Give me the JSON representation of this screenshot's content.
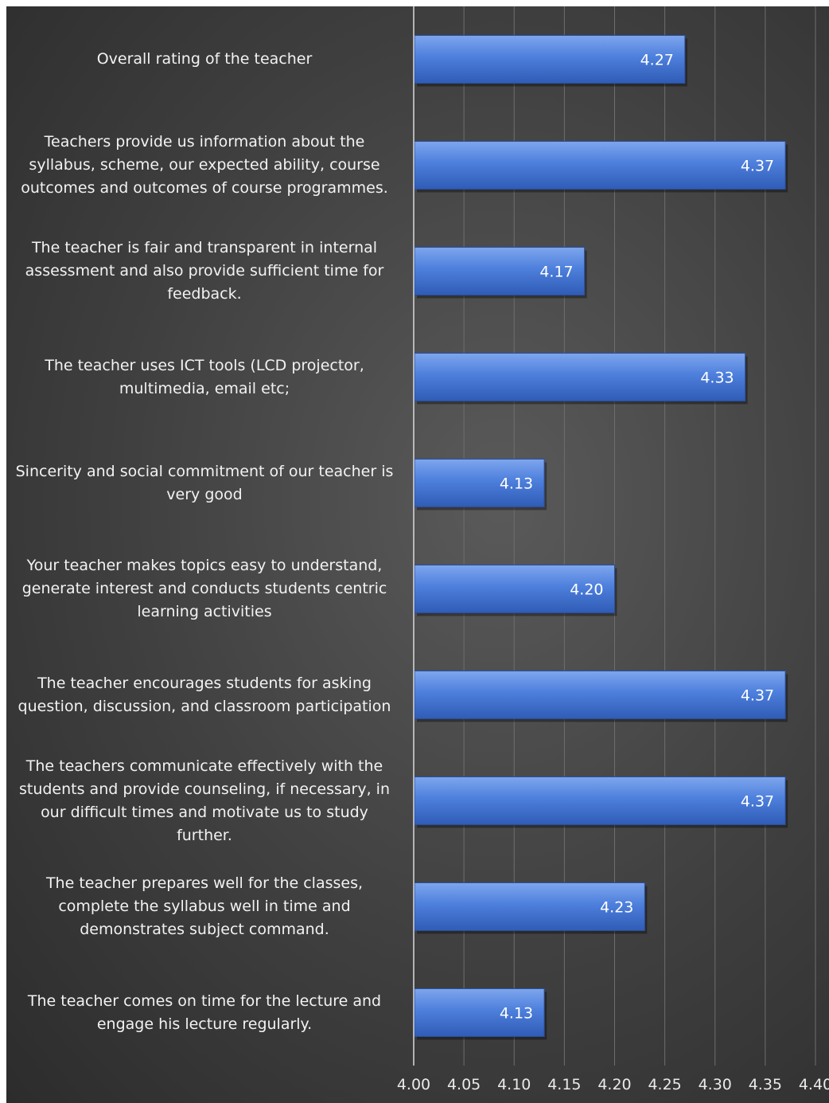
{
  "chart_data": {
    "type": "bar",
    "orientation": "horizontal",
    "categories": [
      "Overall rating of the teacher",
      "Teachers provide us information about the syllabus, scheme, our expected ability, course outcomes and outcomes of course programmes.",
      "The teacher is fair and transparent in internal assessment and also provide sufficient time for feedback.",
      "The teacher uses ICT tools (LCD projector, multimedia, email etc;",
      "Sincerity and social commitment of our teacher is very good",
      "Your teacher makes topics easy to understand, generate interest and conducts students centric learning activities",
      "The teacher encourages students for asking question, discussion, and classroom participation",
      "The teachers communicate effectively with the students and provide counseling, if necessary, in our difficult times and motivate us to study further.",
      "The teacher prepares well for the classes, complete the syllabus well in time and demonstrates subject command.",
      "The teacher comes on time for the lecture and engage his lecture regularly."
    ],
    "values": [
      4.27,
      4.37,
      4.17,
      4.33,
      4.13,
      4.2,
      4.37,
      4.37,
      4.23,
      4.13
    ],
    "value_labels": [
      "4.27",
      "4.37",
      "4.17",
      "4.33",
      "4.13",
      "4.20",
      "4.37",
      "4.37",
      "4.23",
      "4.13"
    ],
    "xlim": [
      4.0,
      4.4
    ],
    "xticks": [
      "4.00",
      "4.05",
      "4.10",
      "4.15",
      "4.20",
      "4.25",
      "4.30",
      "4.35",
      "4.40"
    ],
    "title": "",
    "xlabel": "",
    "ylabel": "",
    "grid": true,
    "legend": "none",
    "bar_color": "#4472c4",
    "background_color": "#404040"
  }
}
